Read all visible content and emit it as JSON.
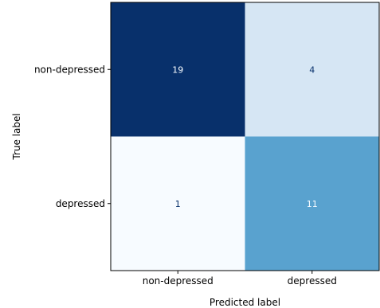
{
  "chart_data": {
    "type": "heatmap",
    "title": "",
    "xlabel": "Predicted label",
    "ylabel": "True label",
    "x_categories": [
      "non-depressed",
      "depressed"
    ],
    "y_categories": [
      "non-depressed",
      "depressed"
    ],
    "matrix": [
      [
        19,
        4
      ],
      [
        1,
        11
      ]
    ],
    "value_range": [
      1,
      19
    ],
    "colormap": "Blues",
    "colorbar": false,
    "grid": false
  }
}
